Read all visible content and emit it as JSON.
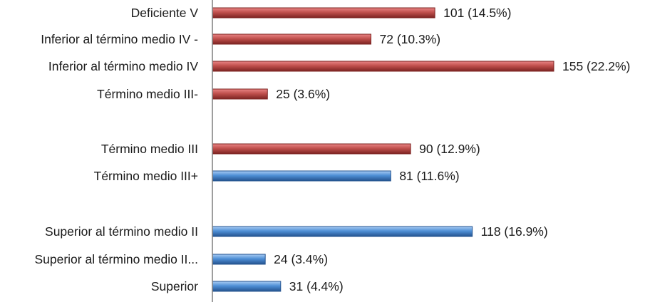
{
  "chart_data": {
    "type": "bar",
    "orientation": "horizontal",
    "categories": [
      "Deficiente V",
      "Inferior al término medio IV -",
      "Inferior al término medio IV",
      "Término medio III-",
      "Término medio III",
      "Término medio III+",
      "Superior al término medio II",
      "Superior al término medio II...",
      "Superior"
    ],
    "values": [
      101,
      72,
      155,
      25,
      90,
      81,
      118,
      24,
      31
    ],
    "value_labels": [
      "101 (14.5%)",
      "72 (10.3%)",
      "155 (22.2%)",
      "25 (3.6%)",
      "90 (12.9%)",
      "81 (11.6%)",
      "118 (16.9%)",
      "24 (3.4%)",
      "31 (4.4%)"
    ],
    "bar_colors": [
      "red",
      "red",
      "red",
      "red",
      "red",
      "blue",
      "blue",
      "blue",
      "blue"
    ],
    "colors": {
      "red": {
        "top": "#e98585",
        "mid": "#c0504d",
        "bottom": "#7d2422"
      },
      "blue": {
        "top": "#a9cdf4",
        "mid": "#4f8fd6",
        "bottom": "#24538f"
      },
      "axis": "#7f7f7f"
    },
    "xlim": [
      0,
      155
    ],
    "grid": false,
    "legend": "none"
  }
}
